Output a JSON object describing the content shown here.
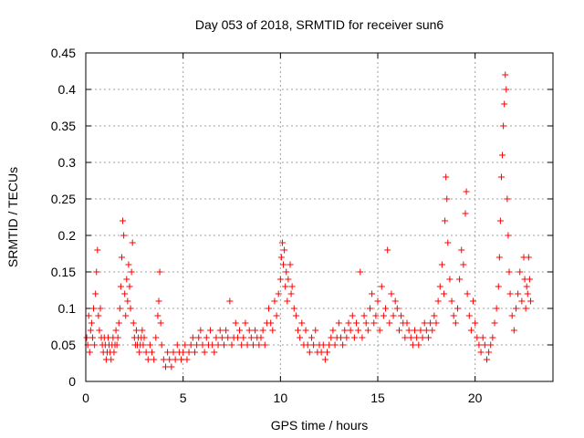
{
  "chart_data": {
    "type": "scatter",
    "title": "Day 053 of 2018, SRMTID for receiver sun6",
    "xlabel": "GPS time / hours",
    "ylabel": "SRMTID / TECUs",
    "xlim": [
      0,
      24
    ],
    "ylim": [
      0,
      0.45
    ],
    "grid": true,
    "legend": "none",
    "marker": "+",
    "color": "#ff0000",
    "x_ticks": [
      0,
      5,
      10,
      15,
      20
    ],
    "x_tick_labels": [
      "0",
      "5",
      "10",
      "15",
      "20"
    ],
    "y_ticks": [
      0,
      0.05,
      0.1,
      0.15,
      0.2,
      0.25,
      0.3,
      0.35,
      0.4,
      0.45
    ],
    "y_tick_labels": [
      "0",
      "0.05",
      "0.1",
      "0.15",
      "0.2",
      "0.25",
      "0.3",
      "0.35",
      "0.4",
      "0.45"
    ],
    "series": [
      {
        "name": "sun6",
        "points": [
          [
            0.05,
            0.06
          ],
          [
            0.1,
            0.05
          ],
          [
            0.15,
            0.09
          ],
          [
            0.2,
            0.04
          ],
          [
            0.25,
            0.07
          ],
          [
            0.3,
            0.08
          ],
          [
            0.35,
            0.06
          ],
          [
            0.4,
            0.1
          ],
          [
            0.45,
            0.05
          ],
          [
            0.5,
            0.12
          ],
          [
            0.55,
            0.15
          ],
          [
            0.6,
            0.18
          ],
          [
            0.65,
            0.09
          ],
          [
            0.7,
            0.07
          ],
          [
            0.75,
            0.1
          ],
          [
            0.8,
            0.06
          ],
          [
            0.85,
            0.05
          ],
          [
            0.9,
            0.04
          ],
          [
            0.95,
            0.06
          ],
          [
            1.0,
            0.05
          ],
          [
            1.05,
            0.03
          ],
          [
            1.1,
            0.04
          ],
          [
            1.15,
            0.06
          ],
          [
            1.2,
            0.05
          ],
          [
            1.25,
            0.04
          ],
          [
            1.3,
            0.03
          ],
          [
            1.35,
            0.05
          ],
          [
            1.4,
            0.06
          ],
          [
            1.45,
            0.04
          ],
          [
            1.5,
            0.05
          ],
          [
            1.55,
            0.07
          ],
          [
            1.6,
            0.05
          ],
          [
            1.65,
            0.06
          ],
          [
            1.7,
            0.08
          ],
          [
            1.75,
            0.1
          ],
          [
            1.8,
            0.13
          ],
          [
            1.85,
            0.17
          ],
          [
            1.9,
            0.22
          ],
          [
            1.95,
            0.2
          ],
          [
            2.0,
            0.12
          ],
          [
            2.05,
            0.09
          ],
          [
            2.1,
            0.14
          ],
          [
            2.15,
            0.11
          ],
          [
            2.2,
            0.16
          ],
          [
            2.25,
            0.13
          ],
          [
            2.3,
            0.1
          ],
          [
            2.35,
            0.15
          ],
          [
            2.4,
            0.19
          ],
          [
            2.45,
            0.08
          ],
          [
            2.5,
            0.06
          ],
          [
            2.55,
            0.05
          ],
          [
            2.6,
            0.07
          ],
          [
            2.65,
            0.05
          ],
          [
            2.7,
            0.06
          ],
          [
            2.75,
            0.04
          ],
          [
            2.8,
            0.05
          ],
          [
            2.85,
            0.06
          ],
          [
            2.9,
            0.07
          ],
          [
            2.95,
            0.05
          ],
          [
            3.0,
            0.06
          ],
          [
            3.1,
            0.04
          ],
          [
            3.2,
            0.03
          ],
          [
            3.3,
            0.05
          ],
          [
            3.4,
            0.04
          ],
          [
            3.5,
            0.03
          ],
          [
            3.6,
            0.06
          ],
          [
            3.7,
            0.09
          ],
          [
            3.75,
            0.11
          ],
          [
            3.8,
            0.15
          ],
          [
            3.85,
            0.08
          ],
          [
            3.9,
            0.05
          ],
          [
            4.0,
            0.03
          ],
          [
            4.1,
            0.02
          ],
          [
            4.2,
            0.04
          ],
          [
            4.3,
            0.03
          ],
          [
            4.4,
            0.02
          ],
          [
            4.5,
            0.04
          ],
          [
            4.6,
            0.03
          ],
          [
            4.7,
            0.05
          ],
          [
            4.8,
            0.04
          ],
          [
            4.9,
            0.03
          ],
          [
            5.0,
            0.04
          ],
          [
            5.1,
            0.05
          ],
          [
            5.2,
            0.03
          ],
          [
            5.3,
            0.04
          ],
          [
            5.4,
            0.05
          ],
          [
            5.5,
            0.06
          ],
          [
            5.6,
            0.04
          ],
          [
            5.7,
            0.05
          ],
          [
            5.8,
            0.06
          ],
          [
            5.9,
            0.07
          ],
          [
            6.0,
            0.05
          ],
          [
            6.1,
            0.04
          ],
          [
            6.2,
            0.06
          ],
          [
            6.3,
            0.05
          ],
          [
            6.4,
            0.07
          ],
          [
            6.5,
            0.05
          ],
          [
            6.6,
            0.04
          ],
          [
            6.7,
            0.06
          ],
          [
            6.8,
            0.05
          ],
          [
            6.9,
            0.07
          ],
          [
            7.0,
            0.06
          ],
          [
            7.1,
            0.05
          ],
          [
            7.2,
            0.07
          ],
          [
            7.3,
            0.06
          ],
          [
            7.4,
            0.11
          ],
          [
            7.5,
            0.05
          ],
          [
            7.6,
            0.06
          ],
          [
            7.7,
            0.08
          ],
          [
            7.8,
            0.06
          ],
          [
            7.9,
            0.07
          ],
          [
            8.0,
            0.05
          ],
          [
            8.1,
            0.06
          ],
          [
            8.2,
            0.08
          ],
          [
            8.3,
            0.05
          ],
          [
            8.4,
            0.07
          ],
          [
            8.5,
            0.06
          ],
          [
            8.6,
            0.05
          ],
          [
            8.7,
            0.07
          ],
          [
            8.8,
            0.06
          ],
          [
            8.9,
            0.05
          ],
          [
            9.0,
            0.06
          ],
          [
            9.1,
            0.07
          ],
          [
            9.2,
            0.05
          ],
          [
            9.3,
            0.08
          ],
          [
            9.4,
            0.1
          ],
          [
            9.5,
            0.08
          ],
          [
            9.6,
            0.07
          ],
          [
            9.7,
            0.11
          ],
          [
            9.8,
            0.09
          ],
          [
            9.9,
            0.12
          ],
          [
            10.0,
            0.14
          ],
          [
            10.05,
            0.17
          ],
          [
            10.1,
            0.19
          ],
          [
            10.15,
            0.16
          ],
          [
            10.2,
            0.18
          ],
          [
            10.25,
            0.13
          ],
          [
            10.3,
            0.15
          ],
          [
            10.35,
            0.11
          ],
          [
            10.4,
            0.14
          ],
          [
            10.5,
            0.16
          ],
          [
            10.55,
            0.12
          ],
          [
            10.6,
            0.13
          ],
          [
            10.7,
            0.1
          ],
          [
            10.8,
            0.09
          ],
          [
            10.9,
            0.07
          ],
          [
            11.0,
            0.06
          ],
          [
            11.1,
            0.08
          ],
          [
            11.2,
            0.05
          ],
          [
            11.3,
            0.07
          ],
          [
            11.4,
            0.05
          ],
          [
            11.5,
            0.04
          ],
          [
            11.6,
            0.06
          ],
          [
            11.7,
            0.05
          ],
          [
            11.8,
            0.07
          ],
          [
            11.9,
            0.04
          ],
          [
            12.0,
            0.05
          ],
          [
            12.1,
            0.04
          ],
          [
            12.2,
            0.05
          ],
          [
            12.3,
            0.03
          ],
          [
            12.4,
            0.04
          ],
          [
            12.5,
            0.05
          ],
          [
            12.6,
            0.06
          ],
          [
            12.7,
            0.07
          ],
          [
            12.8,
            0.05
          ],
          [
            12.9,
            0.06
          ],
          [
            13.0,
            0.08
          ],
          [
            13.1,
            0.06
          ],
          [
            13.2,
            0.05
          ],
          [
            13.3,
            0.07
          ],
          [
            13.4,
            0.06
          ],
          [
            13.5,
            0.08
          ],
          [
            13.6,
            0.07
          ],
          [
            13.7,
            0.09
          ],
          [
            13.8,
            0.06
          ],
          [
            13.9,
            0.08
          ],
          [
            14.0,
            0.07
          ],
          [
            14.1,
            0.15
          ],
          [
            14.2,
            0.06
          ],
          [
            14.3,
            0.09
          ],
          [
            14.4,
            0.08
          ],
          [
            14.5,
            0.07
          ],
          [
            14.6,
            0.1
          ],
          [
            14.7,
            0.12
          ],
          [
            14.8,
            0.08
          ],
          [
            14.9,
            0.09
          ],
          [
            15.0,
            0.11
          ],
          [
            15.1,
            0.07
          ],
          [
            15.2,
            0.13
          ],
          [
            15.3,
            0.09
          ],
          [
            15.4,
            0.1
          ],
          [
            15.5,
            0.18
          ],
          [
            15.6,
            0.08
          ],
          [
            15.7,
            0.12
          ],
          [
            15.8,
            0.09
          ],
          [
            15.9,
            0.11
          ],
          [
            16.0,
            0.1
          ],
          [
            16.1,
            0.07
          ],
          [
            16.2,
            0.09
          ],
          [
            16.3,
            0.08
          ],
          [
            16.4,
            0.06
          ],
          [
            16.5,
            0.08
          ],
          [
            16.6,
            0.07
          ],
          [
            16.7,
            0.06
          ],
          [
            16.8,
            0.05
          ],
          [
            16.9,
            0.07
          ],
          [
            17.0,
            0.06
          ],
          [
            17.1,
            0.05
          ],
          [
            17.2,
            0.07
          ],
          [
            17.3,
            0.06
          ],
          [
            17.4,
            0.08
          ],
          [
            17.5,
            0.07
          ],
          [
            17.6,
            0.06
          ],
          [
            17.7,
            0.08
          ],
          [
            17.8,
            0.07
          ],
          [
            17.9,
            0.09
          ],
          [
            18.0,
            0.08
          ],
          [
            18.1,
            0.11
          ],
          [
            18.2,
            0.13
          ],
          [
            18.3,
            0.16
          ],
          [
            18.4,
            0.12
          ],
          [
            18.45,
            0.22
          ],
          [
            18.5,
            0.28
          ],
          [
            18.55,
            0.25
          ],
          [
            18.6,
            0.19
          ],
          [
            18.7,
            0.14
          ],
          [
            18.8,
            0.11
          ],
          [
            18.9,
            0.09
          ],
          [
            19.0,
            0.08
          ],
          [
            19.1,
            0.1
          ],
          [
            19.2,
            0.14
          ],
          [
            19.3,
            0.18
          ],
          [
            19.4,
            0.16
          ],
          [
            19.5,
            0.23
          ],
          [
            19.55,
            0.26
          ],
          [
            19.6,
            0.12
          ],
          [
            19.7,
            0.09
          ],
          [
            19.8,
            0.07
          ],
          [
            19.9,
            0.11
          ],
          [
            20.0,
            0.08
          ],
          [
            20.1,
            0.06
          ],
          [
            20.2,
            0.05
          ],
          [
            20.3,
            0.04
          ],
          [
            20.4,
            0.06
          ],
          [
            20.5,
            0.05
          ],
          [
            20.6,
            0.03
          ],
          [
            20.7,
            0.04
          ],
          [
            20.8,
            0.05
          ],
          [
            20.9,
            0.06
          ],
          [
            21.0,
            0.08
          ],
          [
            21.1,
            0.1
          ],
          [
            21.2,
            0.13
          ],
          [
            21.25,
            0.17
          ],
          [
            21.3,
            0.22
          ],
          [
            21.35,
            0.28
          ],
          [
            21.4,
            0.31
          ],
          [
            21.45,
            0.35
          ],
          [
            21.5,
            0.38
          ],
          [
            21.55,
            0.42
          ],
          [
            21.6,
            0.4
          ],
          [
            21.65,
            0.25
          ],
          [
            21.7,
            0.2
          ],
          [
            21.75,
            0.15
          ],
          [
            21.8,
            0.12
          ],
          [
            21.9,
            0.09
          ],
          [
            22.0,
            0.07
          ],
          [
            22.1,
            0.1
          ],
          [
            22.2,
            0.12
          ],
          [
            22.3,
            0.15
          ],
          [
            22.4,
            0.11
          ],
          [
            22.5,
            0.17
          ],
          [
            22.55,
            0.14
          ],
          [
            22.6,
            0.1
          ],
          [
            22.65,
            0.13
          ],
          [
            22.7,
            0.12
          ],
          [
            22.75,
            0.17
          ],
          [
            22.8,
            0.14
          ],
          [
            22.85,
            0.11
          ]
        ]
      }
    ]
  }
}
